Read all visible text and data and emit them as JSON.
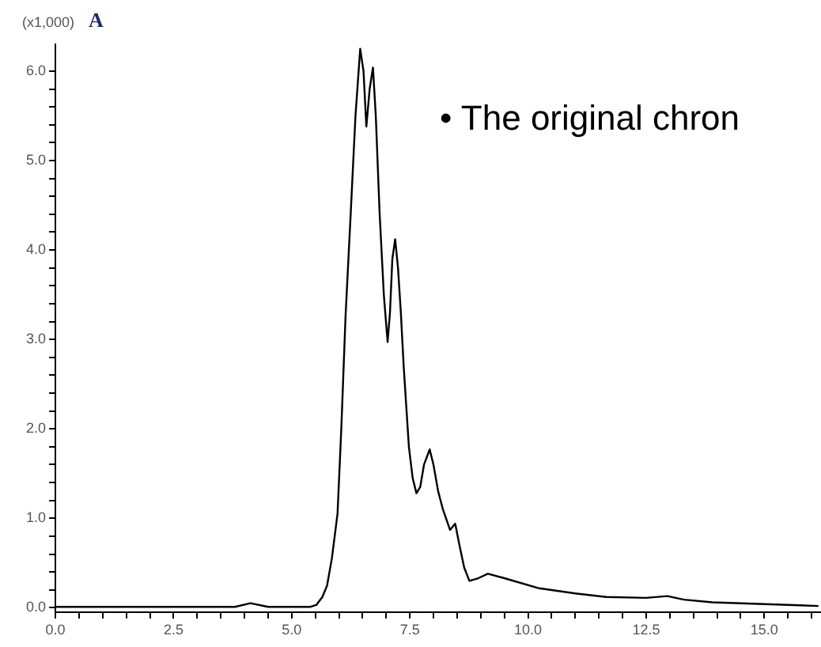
{
  "chart_data": {
    "type": "line",
    "title": "A",
    "ylabel": "(x1,000)",
    "annotations": [
      "• The original chron"
    ],
    "x": [
      0,
      3.8,
      4.13,
      4.5,
      5.4,
      5.52,
      5.65,
      5.75,
      5.85,
      5.97,
      6.05,
      6.14,
      6.25,
      6.35,
      6.45,
      6.52,
      6.58,
      6.65,
      6.72,
      6.78,
      6.86,
      6.95,
      7.03,
      7.08,
      7.13,
      7.19,
      7.25,
      7.31,
      7.37,
      7.48,
      7.56,
      7.64,
      7.72,
      7.8,
      7.92,
      8.0,
      8.1,
      8.2,
      8.35,
      8.46,
      8.55,
      8.65,
      8.76,
      8.95,
      9.15,
      9.5,
      10.21,
      11.0,
      11.66,
      12.5,
      12.95,
      13.3,
      13.9,
      15.0,
      16.13
    ],
    "series": [
      {
        "color": "#000000",
        "values": [
          0.01,
          0.01,
          0.05,
          0.01,
          0.01,
          0.03,
          0.12,
          0.25,
          0.55,
          1.05,
          2.0,
          3.26,
          4.42,
          5.5,
          6.25,
          6.0,
          5.38,
          5.8,
          6.04,
          5.5,
          4.42,
          3.5,
          2.97,
          3.3,
          3.9,
          4.12,
          3.8,
          3.3,
          2.7,
          1.8,
          1.45,
          1.28,
          1.35,
          1.6,
          1.77,
          1.6,
          1.3,
          1.1,
          0.87,
          0.94,
          0.7,
          0.45,
          0.3,
          0.33,
          0.38,
          0.33,
          0.22,
          0.16,
          0.12,
          0.11,
          0.13,
          0.09,
          0.06,
          0.04,
          0.02
        ]
      }
    ],
    "xlim": [
      0,
      16.2
    ],
    "ylim": [
      -0.05,
      6.3
    ],
    "xticks": [
      {
        "value": 0,
        "label": "0.0"
      },
      {
        "value": 0.5,
        "label": null
      },
      {
        "value": 1,
        "label": null
      },
      {
        "value": 1.5,
        "label": null
      },
      {
        "value": 2,
        "label": null
      },
      {
        "value": 2.5,
        "label": "2.5"
      },
      {
        "value": 3,
        "label": null
      },
      {
        "value": 3.5,
        "label": null
      },
      {
        "value": 4,
        "label": null
      },
      {
        "value": 4.5,
        "label": null
      },
      {
        "value": 5,
        "label": "5.0"
      },
      {
        "value": 5.5,
        "label": null
      },
      {
        "value": 6,
        "label": null
      },
      {
        "value": 6.5,
        "label": null
      },
      {
        "value": 7,
        "label": null
      },
      {
        "value": 7.5,
        "label": "7.5"
      },
      {
        "value": 8,
        "label": null
      },
      {
        "value": 8.5,
        "label": null
      },
      {
        "value": 9,
        "label": null
      },
      {
        "value": 9.5,
        "label": null
      },
      {
        "value": 10,
        "label": "10.0"
      },
      {
        "value": 10.5,
        "label": null
      },
      {
        "value": 11,
        "label": null
      },
      {
        "value": 11.5,
        "label": null
      },
      {
        "value": 12,
        "label": null
      },
      {
        "value": 12.5,
        "label": "12.5"
      },
      {
        "value": 13,
        "label": null
      },
      {
        "value": 13.5,
        "label": null
      },
      {
        "value": 14,
        "label": null
      },
      {
        "value": 14.5,
        "label": null
      },
      {
        "value": 15,
        "label": "15.0"
      },
      {
        "value": 15.5,
        "label": null
      },
      {
        "value": 16,
        "label": null
      }
    ],
    "yticks": [
      {
        "value": 0,
        "label": "0.0"
      },
      {
        "value": 0.2,
        "label": null
      },
      {
        "value": 0.4,
        "label": null
      },
      {
        "value": 0.6,
        "label": null
      },
      {
        "value": 0.8,
        "label": null
      },
      {
        "value": 1,
        "label": "1.0"
      },
      {
        "value": 1.2,
        "label": null
      },
      {
        "value": 1.4,
        "label": null
      },
      {
        "value": 1.6,
        "label": null
      },
      {
        "value": 1.8,
        "label": null
      },
      {
        "value": 2,
        "label": "2.0"
      },
      {
        "value": 2.2,
        "label": null
      },
      {
        "value": 2.4,
        "label": null
      },
      {
        "value": 2.6,
        "label": null
      },
      {
        "value": 2.8,
        "label": null
      },
      {
        "value": 3,
        "label": "3.0"
      },
      {
        "value": 3.2,
        "label": null
      },
      {
        "value": 3.4,
        "label": null
      },
      {
        "value": 3.6,
        "label": null
      },
      {
        "value": 3.8,
        "label": null
      },
      {
        "value": 4,
        "label": "4.0"
      },
      {
        "value": 4.2,
        "label": null
      },
      {
        "value": 4.4,
        "label": null
      },
      {
        "value": 4.6,
        "label": null
      },
      {
        "value": 4.8,
        "label": null
      },
      {
        "value": 5,
        "label": "5.0"
      },
      {
        "value": 5.2,
        "label": null
      },
      {
        "value": 5.4,
        "label": null
      },
      {
        "value": 5.6,
        "label": null
      },
      {
        "value": 5.8,
        "label": null
      },
      {
        "value": 6,
        "label": "6.0"
      }
    ],
    "marker": "none",
    "line_style": "solid"
  }
}
